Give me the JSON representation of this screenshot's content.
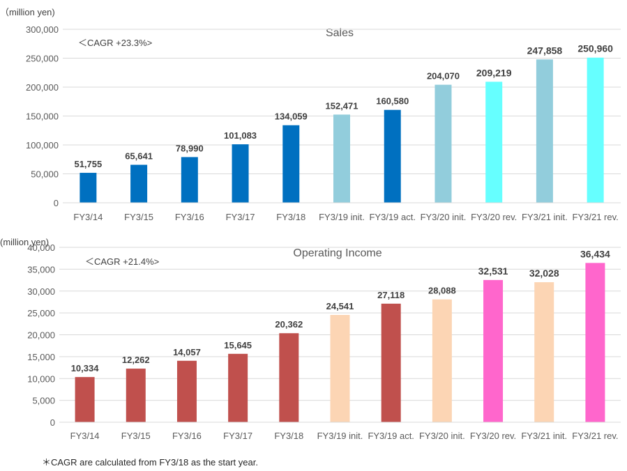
{
  "footnote": "＊CAGR are calculated from FY3/18 as the start year.",
  "chart_data": [
    {
      "type": "bar",
      "title": "Sales",
      "unit_label": "（million yen)",
      "annotation": "＜CAGR  +23.3%>",
      "ylim": [
        0,
        300000
      ],
      "yticks": [
        "0",
        "50,000",
        "100,000",
        "150,000",
        "200,000",
        "250,000",
        "300,000"
      ],
      "ytick_values": [
        0,
        50000,
        100000,
        150000,
        200000,
        250000,
        300000
      ],
      "grid": true,
      "categories": [
        "FY3/14",
        "FY3/15",
        "FY3/16",
        "FY3/17",
        "FY3/18",
        "FY3/19 init.",
        "FY3/19 act.",
        "FY3/20 init.",
        "FY3/20 rev.",
        "FY3/21 init.",
        "FY3/21 rev."
      ],
      "values": [
        51755,
        65641,
        78990,
        101083,
        134059,
        152471,
        160580,
        204070,
        209219,
        247858,
        250960
      ],
      "value_labels": [
        "51,755",
        "65,641",
        "78,990",
        "101,083",
        "134,059",
        "152,471",
        "160,580",
        "204,070",
        "209,219",
        "247,858",
        "250,960"
      ],
      "colors": [
        "#0070c0",
        "#0070c0",
        "#0070c0",
        "#0070c0",
        "#0070c0",
        "#92cddc",
        "#0070c0",
        "#92cddc",
        "#66ffff",
        "#92cddc",
        "#66ffff"
      ]
    },
    {
      "type": "bar",
      "title": "Operating Income",
      "unit_label": "(million yen)",
      "annotation": "＜CAGR +21.4%>",
      "ylim": [
        0,
        40000
      ],
      "yticks": [
        "0",
        "5,000",
        "10,000",
        "15,000",
        "20,000",
        "25,000",
        "30,000",
        "35,000",
        "40,000"
      ],
      "ytick_values": [
        0,
        5000,
        10000,
        15000,
        20000,
        25000,
        30000,
        35000,
        40000
      ],
      "grid": true,
      "categories": [
        "FY3/14",
        "FY3/15",
        "FY3/16",
        "FY3/17",
        "FY3/18",
        "FY3/19 init.",
        "FY3/19 act.",
        "FY3/20 init.",
        "FY3/20 rev.",
        "FY3/21 init.",
        "FY3/21 rev."
      ],
      "values": [
        10334,
        12262,
        14057,
        15645,
        20362,
        24541,
        27118,
        28088,
        32531,
        32028,
        36434
      ],
      "value_labels": [
        "10,334",
        "12,262",
        "14,057",
        "15,645",
        "20,362",
        "24,541",
        "27,118",
        "28,088",
        "32,531",
        "32,028",
        "36,434"
      ],
      "colors": [
        "#c0504d",
        "#c0504d",
        "#c0504d",
        "#c0504d",
        "#c0504d",
        "#fcd5b4",
        "#c0504d",
        "#fcd5b4",
        "#ff66cc",
        "#fcd5b4",
        "#ff66cc"
      ]
    }
  ]
}
